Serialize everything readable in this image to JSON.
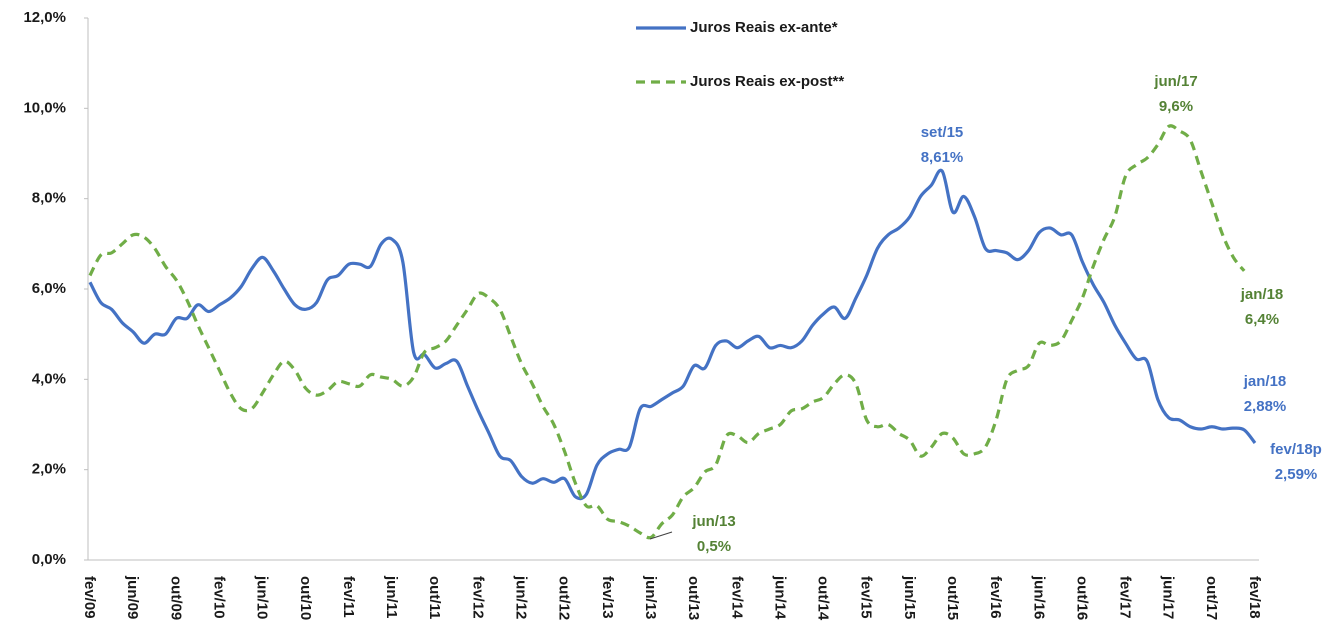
{
  "chart_data": {
    "type": "line",
    "categories": [
      "fev/09",
      null,
      null,
      null,
      "jun/09",
      null,
      null,
      null,
      "out/09",
      null,
      null,
      null,
      "fev/10",
      null,
      null,
      null,
      "jun/10",
      null,
      null,
      null,
      "out/10",
      null,
      null,
      null,
      "fev/11",
      null,
      null,
      null,
      "jun/11",
      null,
      null,
      null,
      "out/11",
      null,
      null,
      null,
      "fev/12",
      null,
      null,
      null,
      "jun/12",
      null,
      null,
      null,
      "out/12",
      null,
      null,
      null,
      "fev/13",
      null,
      null,
      null,
      "jun/13",
      null,
      null,
      null,
      "out/13",
      null,
      null,
      null,
      "fev/14",
      null,
      null,
      null,
      "jun/14",
      null,
      null,
      null,
      "out/14",
      null,
      null,
      null,
      "fev/15",
      null,
      null,
      null,
      "jun/15",
      null,
      null,
      null,
      "out/15",
      null,
      null,
      null,
      "fev/16",
      null,
      null,
      null,
      "jun/16",
      null,
      null,
      null,
      "out/16",
      null,
      null,
      null,
      "fev/17",
      null,
      null,
      null,
      "jun/17",
      null,
      null,
      null,
      "out/17",
      null,
      null,
      null,
      "fev/18"
    ],
    "series": [
      {
        "name": "Juros Reais ex-ante*",
        "color": "#4472c4",
        "dash": false,
        "values": [
          6.15,
          5.7,
          5.55,
          5.25,
          5.05,
          4.8,
          5.0,
          5.0,
          5.35,
          5.35,
          5.65,
          5.5,
          5.65,
          5.8,
          6.05,
          6.45,
          6.7,
          6.4,
          6.0,
          5.65,
          5.55,
          5.7,
          6.2,
          6.3,
          6.55,
          6.55,
          6.5,
          7.0,
          7.1,
          6.6,
          4.6,
          4.55,
          4.25,
          4.35,
          4.4,
          3.85,
          3.3,
          2.8,
          2.3,
          2.2,
          1.85,
          1.7,
          1.8,
          1.72,
          1.8,
          1.4,
          1.45,
          2.1,
          2.35,
          2.45,
          2.5,
          3.35,
          3.4,
          3.55,
          3.7,
          3.85,
          4.3,
          4.25,
          4.75,
          4.85,
          4.7,
          4.85,
          4.95,
          4.7,
          4.75,
          4.7,
          4.85,
          5.2,
          5.45,
          5.6,
          5.35,
          5.8,
          6.3,
          6.9,
          7.2,
          7.35,
          7.6,
          8.05,
          8.3,
          8.61,
          7.7,
          8.05,
          7.6,
          6.9,
          6.85,
          6.8,
          6.65,
          6.85,
          7.25,
          7.35,
          7.2,
          7.2,
          6.6,
          6.1,
          5.7,
          5.2,
          4.8,
          4.45,
          4.4,
          3.55,
          3.15,
          3.1,
          2.95,
          2.9,
          2.95,
          2.9,
          2.92,
          2.88,
          2.59
        ]
      },
      {
        "name": "Juros Reais ex-post**",
        "color": "#70ad47",
        "dash": true,
        "values": [
          6.3,
          6.75,
          6.8,
          7.0,
          7.2,
          7.15,
          6.9,
          6.5,
          6.2,
          5.75,
          5.2,
          4.7,
          4.2,
          3.7,
          3.35,
          3.35,
          3.7,
          4.1,
          4.4,
          4.2,
          3.8,
          3.65,
          3.75,
          3.95,
          3.9,
          3.85,
          4.1,
          4.05,
          4.0,
          3.85,
          4.05,
          4.6,
          4.7,
          4.85,
          5.2,
          5.55,
          5.9,
          5.8,
          5.55,
          4.95,
          4.35,
          3.9,
          3.4,
          3.0,
          2.4,
          1.7,
          1.2,
          1.2,
          0.9,
          0.85,
          0.75,
          0.6,
          0.5,
          0.8,
          1.0,
          1.4,
          1.6,
          1.95,
          2.1,
          2.75,
          2.75,
          2.6,
          2.8,
          2.9,
          3.0,
          3.3,
          3.35,
          3.5,
          3.6,
          3.9,
          4.1,
          3.9,
          3.1,
          2.95,
          3.0,
          2.8,
          2.65,
          2.3,
          2.5,
          2.8,
          2.7,
          2.35,
          2.35,
          2.5,
          3.1,
          4.0,
          4.2,
          4.3,
          4.8,
          4.75,
          4.85,
          5.3,
          5.8,
          6.5,
          7.1,
          7.6,
          8.5,
          8.75,
          8.9,
          9.2,
          9.6,
          9.5,
          9.3,
          8.6,
          7.9,
          7.2,
          6.7,
          6.4,
          null
        ]
      }
    ],
    "annotations": [
      {
        "label": "set/15",
        "value": "8,61%",
        "color": "#4472c4"
      },
      {
        "label": "jun/17",
        "value": "9,6%",
        "color": "#548235"
      },
      {
        "label": "jan/18",
        "value": "6,4%",
        "color": "#548235"
      },
      {
        "label": "jan/18",
        "value": "2,88%",
        "color": "#4472c4"
      },
      {
        "label": "fev/18p",
        "value": "2,59%",
        "color": "#4472c4"
      },
      {
        "label": "jun/13",
        "value": "0,5%",
        "color": "#548235"
      }
    ],
    "ylim": [
      0,
      12
    ],
    "yticks": [
      {
        "value": 0,
        "label": "0,0%"
      },
      {
        "value": 2,
        "label": "2,0%"
      },
      {
        "value": 4,
        "label": "4,0%"
      },
      {
        "value": 6,
        "label": "6,0%"
      },
      {
        "value": 8,
        "label": "8,0%"
      },
      {
        "value": 10,
        "label": "10,0%"
      },
      {
        "value": 12,
        "label": "12,0%"
      }
    ],
    "grid": false
  }
}
